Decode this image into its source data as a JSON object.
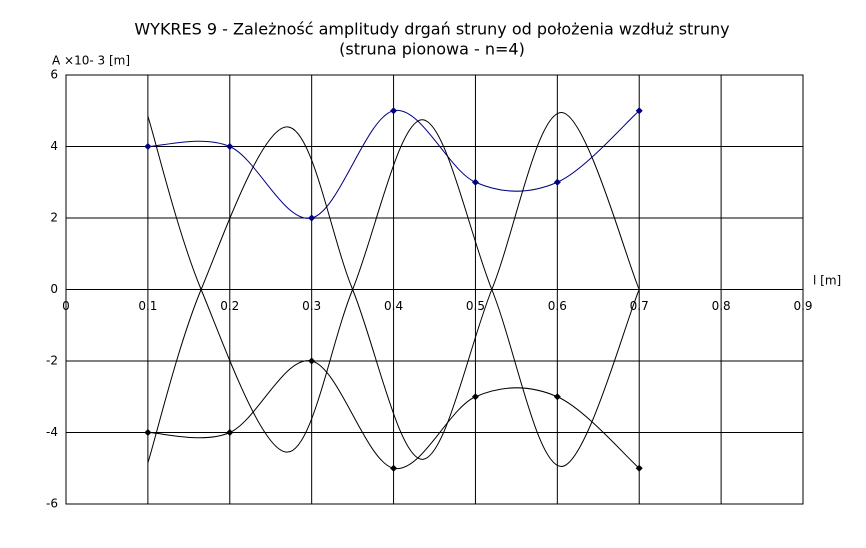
{
  "chart_data": {
    "type": "line",
    "title": "WYKRES 9  -  Zależność amplitudy drgań struny od położenia wzdłuż struny",
    "subtitle": "(struna pionowa  - n=4)",
    "y_label": "A ×10- 3 [m]",
    "x_label": "l [m]",
    "xlim": [
      0,
      0.9
    ],
    "xticks": [
      0,
      0.1,
      0.2,
      0.3,
      0.4,
      0.5,
      0.6,
      0.7,
      0.8,
      0.9
    ],
    "ylim": [
      -6,
      6
    ],
    "yticks": [
      -6,
      -4,
      -2,
      0,
      2,
      4,
      6
    ],
    "grid": true,
    "series": [
      {
        "color": "#000080",
        "markers": true,
        "x": [
          0.1,
          0.2,
          0.3,
          0.4,
          0.5,
          0.6,
          0.7
        ],
        "values": [
          4,
          4,
          2,
          5,
          3,
          3,
          5
        ]
      },
      {
        "color": "#000000",
        "markers": true,
        "x": [
          0.1,
          0.2,
          0.3,
          0.4,
          0.5,
          0.6,
          0.7
        ],
        "values": [
          -4,
          -4,
          -2,
          -5,
          -3,
          -3,
          -5
        ]
      },
      {
        "color": "#000000",
        "markers": false,
        "x": [
          0.1,
          0.165,
          0.27,
          0.35,
          0.435,
          0.52,
          0.605,
          0.7
        ],
        "values": [
          4.85,
          0,
          -4.55,
          0,
          4.75,
          0,
          -4.95,
          0
        ]
      },
      {
        "color": "#000000",
        "markers": false,
        "x": [
          0.1,
          0.165,
          0.27,
          0.35,
          0.435,
          0.52,
          0.605,
          0.7
        ],
        "values": [
          -4.85,
          0,
          4.55,
          0,
          -4.75,
          0,
          4.95,
          0
        ]
      }
    ]
  }
}
